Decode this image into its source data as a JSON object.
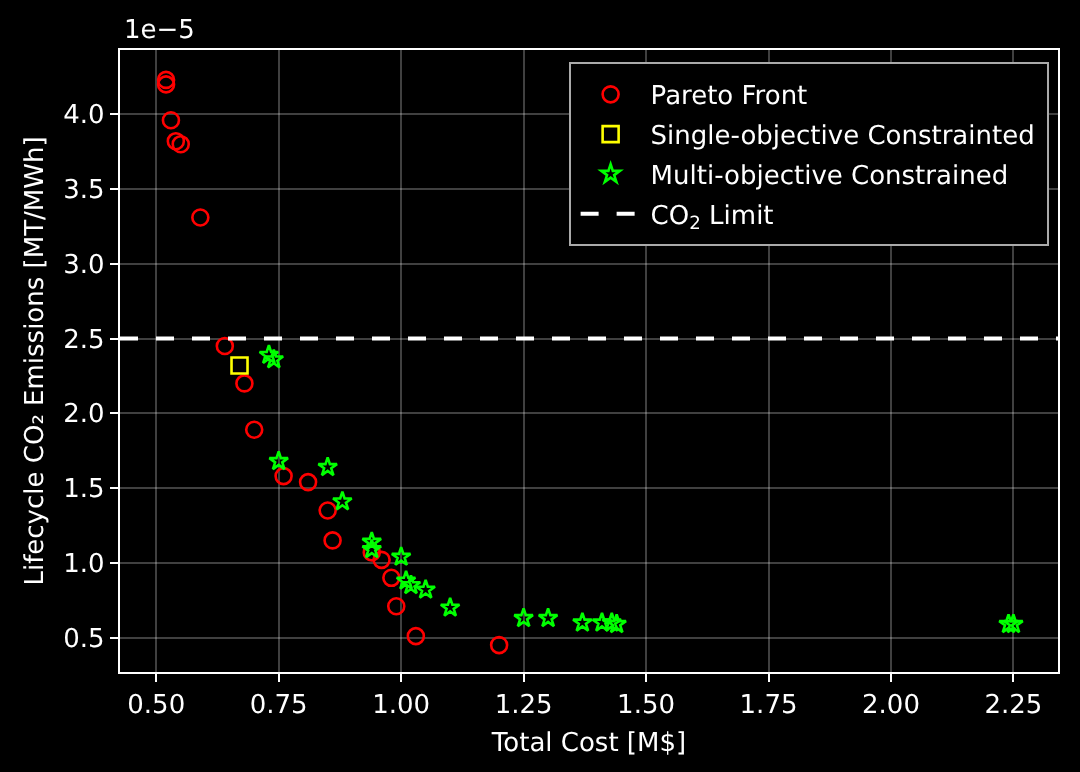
{
  "chart_data": {
    "type": "scatter",
    "xlabel": "Total Cost [M$]",
    "ylabel": "Lifecycle CO₂ Emissions [MT/MWh]",
    "annotations": [
      "1e−5"
    ],
    "xlim": [
      0.426,
      2.341
    ],
    "xticks": [
      {
        "value": 0.5,
        "label": "0.50"
      },
      0.75,
      {
        "value": 1.0,
        "label": "1.00"
      },
      1.25,
      {
        "value": 1.5,
        "label": "1.50"
      },
      1.75,
      {
        "value": 2.0,
        "label": "2.00"
      },
      2.25
    ],
    "ylim": [
      0.27,
      4.43
    ],
    "yticks": [
      0.5,
      {
        "value": 1.0,
        "label": "1.0"
      },
      1.5,
      {
        "value": 2.0,
        "label": "2.0"
      },
      2.5,
      {
        "value": 3.0,
        "label": "3.0"
      },
      3.5,
      {
        "value": 4.0,
        "label": "4.0"
      }
    ],
    "grid": true,
    "legend": "top right",
    "series": [
      {
        "name": "Pareto Front",
        "color": "#ff0000",
        "marker": "circle",
        "x": [
          0.52,
          0.52,
          0.53,
          0.54,
          0.55,
          0.59,
          0.64,
          0.68,
          0.7,
          0.76,
          0.81,
          0.85,
          0.86,
          0.94,
          0.96,
          0.98,
          0.99,
          1.03,
          1.2
        ],
        "values": [
          4.23,
          4.2,
          3.96,
          3.82,
          3.8,
          3.31,
          2.45,
          2.2,
          1.89,
          1.58,
          1.54,
          1.35,
          1.15,
          1.07,
          1.02,
          0.9,
          0.71,
          0.51,
          0.45
        ]
      },
      {
        "name": "Single-objective Constrainted",
        "color": "#ffff00",
        "marker": "square",
        "x": [
          0.67
        ],
        "values": [
          2.32
        ]
      },
      {
        "name": "Multi-objective Constrained",
        "color": "#00ff00",
        "marker": "star",
        "x": [
          0.73,
          0.74,
          0.75,
          0.85,
          0.88,
          0.94,
          0.94,
          1.0,
          1.01,
          1.02,
          1.05,
          1.1,
          1.25,
          1.3,
          1.37,
          1.41,
          1.43,
          1.44,
          2.24,
          2.25
        ],
        "values": [
          2.39,
          2.36,
          1.68,
          1.64,
          1.41,
          1.14,
          1.09,
          1.04,
          0.88,
          0.85,
          0.82,
          0.7,
          0.63,
          0.63,
          0.6,
          0.6,
          0.6,
          0.59,
          0.59,
          0.59
        ]
      }
    ],
    "ref_lines": [
      {
        "axis": "y",
        "value": 2.5,
        "label": "CO$_{2}$ Limit",
        "color": "#ffffff",
        "line_style": "dashed"
      }
    ]
  }
}
